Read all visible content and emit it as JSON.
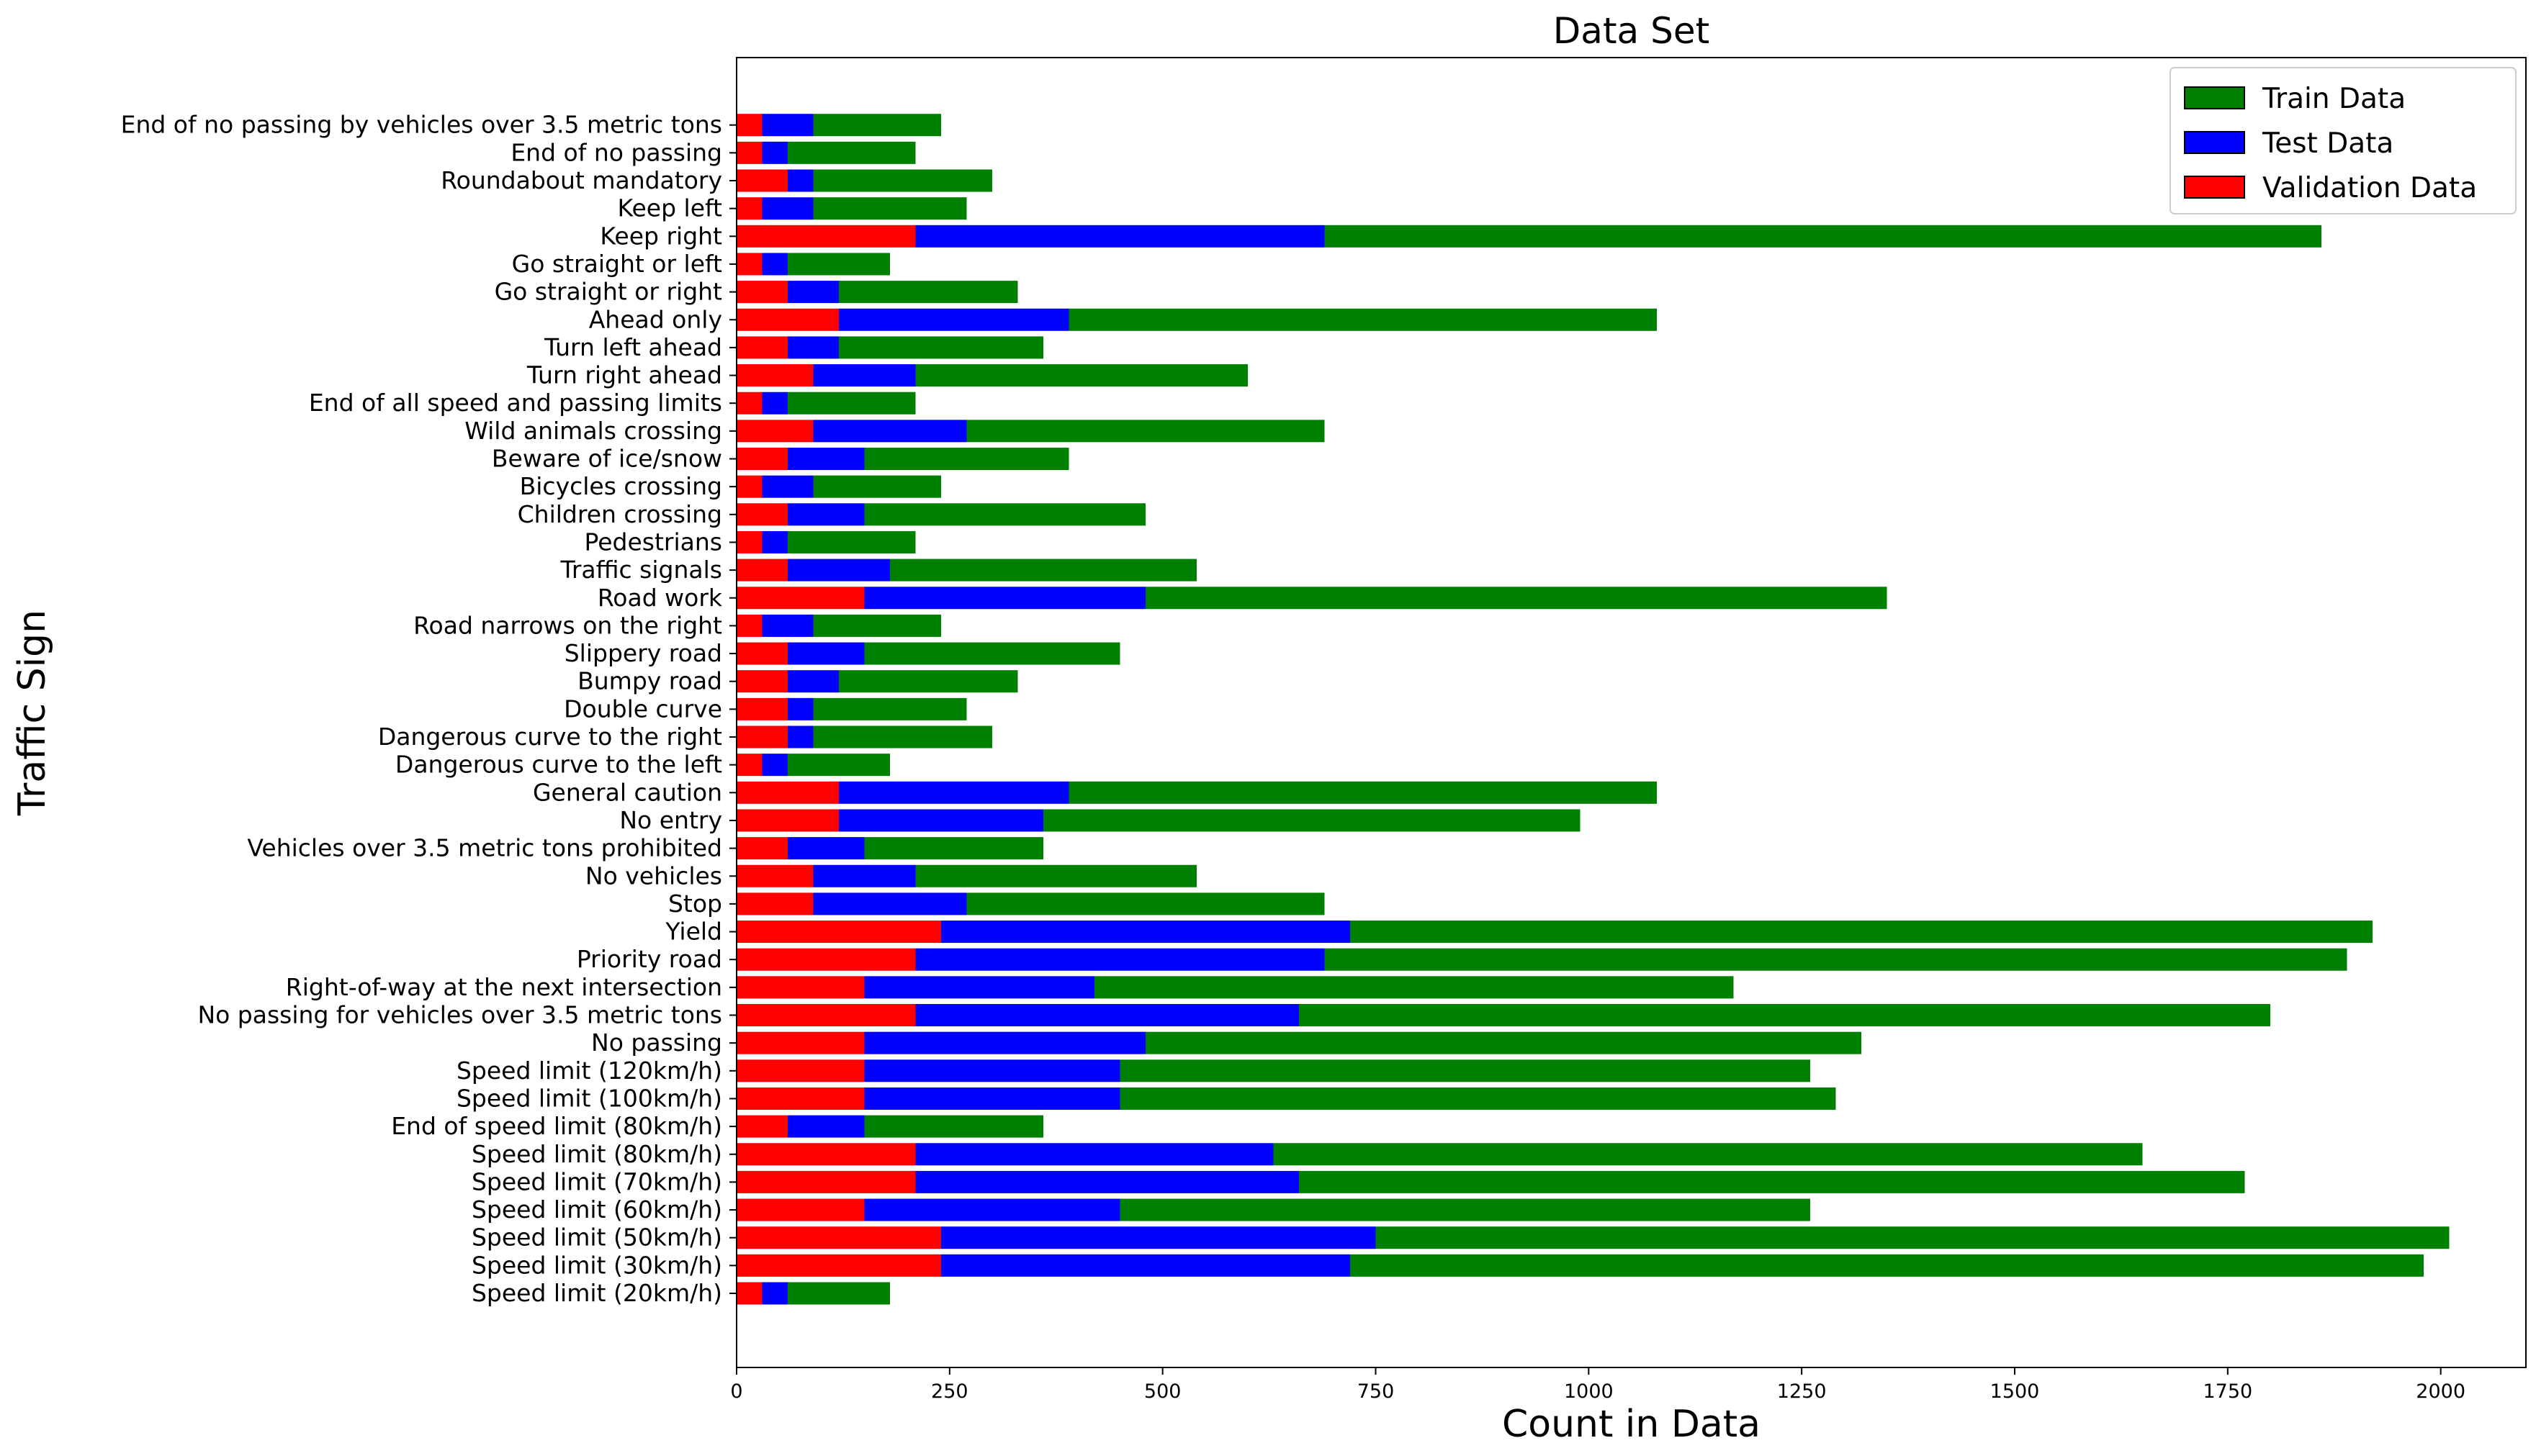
{
  "chart_data": {
    "type": "bar",
    "orientation": "horizontal",
    "stacked": true,
    "title": "Data Set",
    "xlabel": "Count in Data",
    "ylabel": "Traffic Sign",
    "xlim": [
      0,
      2100
    ],
    "xticks": [
      0,
      250,
      500,
      750,
      1000,
      1250,
      1500,
      1750,
      2000
    ],
    "legend_position": "top-right",
    "categories": [
      "Speed limit (20km/h)",
      "Speed limit (30km/h)",
      "Speed limit (50km/h)",
      "Speed limit (60km/h)",
      "Speed limit (70km/h)",
      "Speed limit (80km/h)",
      "End of speed limit (80km/h)",
      "Speed limit (100km/h)",
      "Speed limit (120km/h)",
      "No passing",
      "No passing for vehicles over 3.5 metric tons",
      "Right-of-way at the next intersection",
      "Priority road",
      "Yield",
      "Stop",
      "No vehicles",
      "Vehicles over 3.5 metric tons prohibited",
      "No entry",
      "General caution",
      "Dangerous curve to the left",
      "Dangerous curve to the right",
      "Double curve",
      "Bumpy road",
      "Slippery road",
      "Road narrows on the right",
      "Road work",
      "Traffic signals",
      "Pedestrians",
      "Children crossing",
      "Bicycles crossing",
      "Beware of ice/snow",
      "Wild animals crossing",
      "End of all speed and passing limits",
      "Turn right ahead",
      "Turn left ahead",
      "Ahead only",
      "Go straight or right",
      "Go straight or left",
      "Keep right",
      "Keep left",
      "Roundabout mandatory",
      "End of no passing",
      "End of no passing by vehicles over 3.5 metric tons"
    ],
    "series": [
      {
        "name": "Validation Data",
        "color": "#ff0000",
        "values": [
          30,
          240,
          240,
          150,
          210,
          210,
          60,
          150,
          150,
          150,
          210,
          150,
          210,
          240,
          90,
          90,
          60,
          120,
          120,
          30,
          60,
          60,
          60,
          60,
          30,
          150,
          60,
          30,
          60,
          30,
          60,
          90,
          30,
          90,
          60,
          120,
          60,
          30,
          210,
          30,
          60,
          30,
          30
        ]
      },
      {
        "name": "Test Data",
        "color": "#0000ff",
        "values": [
          30,
          480,
          510,
          300,
          450,
          420,
          90,
          300,
          300,
          330,
          450,
          270,
          480,
          480,
          180,
          120,
          90,
          240,
          270,
          30,
          30,
          30,
          60,
          90,
          60,
          330,
          120,
          30,
          90,
          60,
          90,
          180,
          30,
          120,
          60,
          270,
          60,
          30,
          480,
          60,
          30,
          30,
          60
        ]
      },
      {
        "name": "Train Data",
        "color": "#008000",
        "values": [
          120,
          1260,
          1260,
          810,
          1110,
          1020,
          210,
          840,
          810,
          840,
          1140,
          750,
          1200,
          1200,
          420,
          330,
          210,
          630,
          690,
          120,
          210,
          180,
          210,
          300,
          150,
          870,
          360,
          150,
          330,
          150,
          240,
          420,
          150,
          390,
          240,
          690,
          210,
          120,
          1170,
          180,
          210,
          150,
          150
        ]
      }
    ],
    "legend_order": [
      "Train Data",
      "Test Data",
      "Validation Data"
    ]
  }
}
